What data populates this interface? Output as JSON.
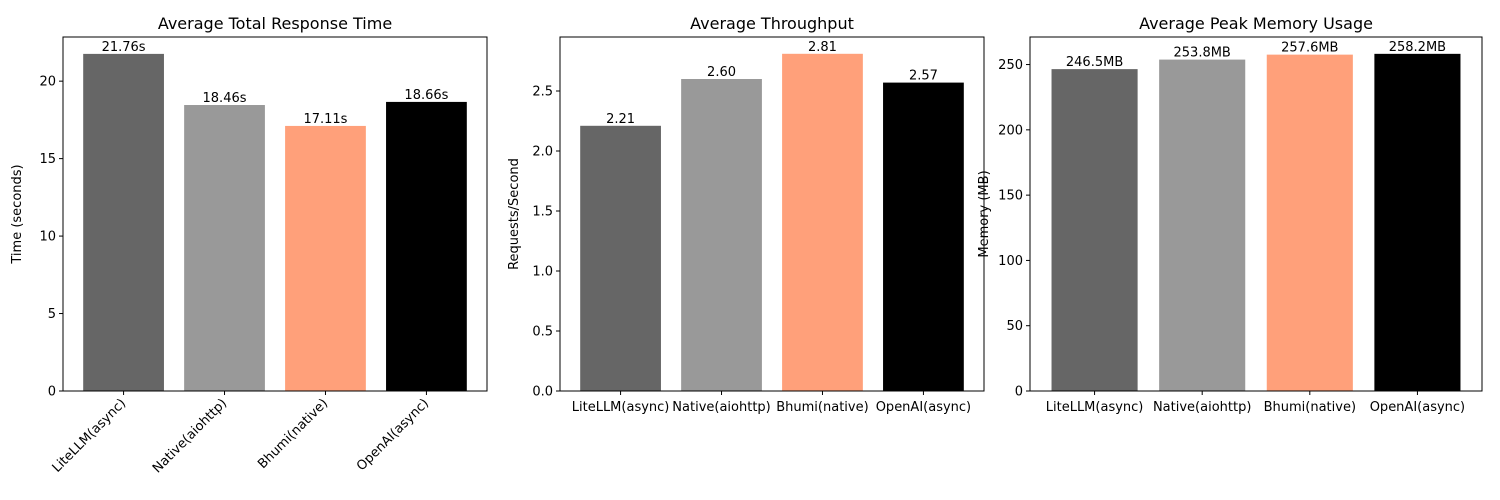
{
  "chart_data": [
    {
      "type": "bar",
      "title": "Average Total Response Time",
      "xlabel": "",
      "ylabel": "Time (seconds)",
      "categories": [
        "LiteLLM(async)",
        "Native(aiohttp)",
        "Bhumi(native)",
        "OpenAI(async)"
      ],
      "values": [
        21.76,
        18.46,
        17.11,
        18.66
      ],
      "data_labels": [
        "21.76s",
        "18.46s",
        "17.11s",
        "18.66s"
      ],
      "colors": [
        "#666666",
        "#999999",
        "#ffa07a",
        "#000000"
      ],
      "ylim": [
        0,
        22.85
      ],
      "yticks": [
        0,
        5,
        10,
        15,
        20
      ],
      "ytick_labels": [
        "0",
        "5",
        "10",
        "15",
        "20"
      ],
      "xtick_rotation": 45,
      "grid": false
    },
    {
      "type": "bar",
      "title": "Average Throughput",
      "xlabel": "",
      "ylabel": "Requests/Second",
      "categories": [
        "LiteLLM(async)",
        "Native(aiohttp)",
        "Bhumi(native)",
        "OpenAI(async)"
      ],
      "values": [
        2.21,
        2.6,
        2.81,
        2.57
      ],
      "data_labels": [
        "2.21",
        "2.60",
        "2.81",
        "2.57"
      ],
      "colors": [
        "#666666",
        "#999999",
        "#ffa07a",
        "#000000"
      ],
      "ylim": [
        0,
        2.95
      ],
      "yticks": [
        0,
        0.5,
        1.0,
        1.5,
        2.0,
        2.5
      ],
      "ytick_labels": [
        "0.0",
        "0.5",
        "1.0",
        "1.5",
        "2.0",
        "2.5"
      ],
      "xtick_rotation": 0,
      "grid": false
    },
    {
      "type": "bar",
      "title": "Average Peak Memory Usage",
      "xlabel": "",
      "ylabel": "Memory (MB)",
      "categories": [
        "LiteLLM(async)",
        "Native(aiohttp)",
        "Bhumi(native)",
        "OpenAI(async)"
      ],
      "values": [
        246.5,
        253.8,
        257.6,
        258.2
      ],
      "data_labels": [
        "246.5MB",
        "253.8MB",
        "257.6MB",
        "258.2MB"
      ],
      "colors": [
        "#666666",
        "#999999",
        "#ffa07a",
        "#000000"
      ],
      "ylim": [
        0,
        271.1
      ],
      "yticks": [
        0,
        50,
        100,
        150,
        200,
        250
      ],
      "ytick_labels": [
        "0",
        "50",
        "100",
        "150",
        "200",
        "250"
      ],
      "xtick_rotation": 0,
      "grid": false
    }
  ]
}
